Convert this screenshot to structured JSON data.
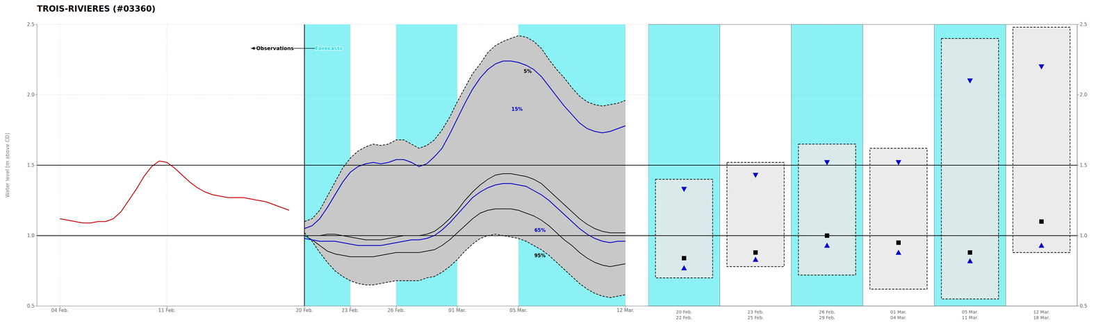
{
  "chart_data": [
    {
      "type": "line",
      "title": "TROIS-RIVIERES (#03360)",
      "y_label": "Water level [m above CD]",
      "xlim": [
        -17.5,
        22.5
      ],
      "xticks": [
        {
          "value": -16,
          "label": "04 Feb."
        },
        {
          "value": -9,
          "label": "11 Feb."
        },
        {
          "value": 0,
          "label": "20 Feb."
        },
        {
          "value": 3,
          "label": "23 Feb."
        },
        {
          "value": 6,
          "label": "26 Feb."
        },
        {
          "value": 10,
          "label": "01 Mar."
        },
        {
          "value": 14,
          "label": "05 Mar."
        },
        {
          "value": 21,
          "label": "12 Mar."
        }
      ],
      "ylim": [
        0.5,
        2.5
      ],
      "yticks": [
        0.5,
        {
          "value": 1.0,
          "label": "1.0"
        },
        1.5,
        {
          "value": 2.0,
          "label": "2.0"
        },
        2.5
      ],
      "grid": true,
      "shaded_x": {
        "color": "#00e0e8",
        "ranges": [
          [
            0,
            3
          ],
          [
            6,
            10
          ],
          [
            14,
            21
          ]
        ]
      },
      "fill_between": {
        "series": [
          "5%",
          "95%"
        ],
        "color": "#c8c8c8"
      },
      "reference_lines": {
        "x": [
          0
        ],
        "y": [
          1.0,
          1.5
        ]
      },
      "annotations": [
        {
          "text": "Observations",
          "x": -0.7,
          "y": 2.33,
          "color": "#000000"
        },
        {
          "text": "Forecasts",
          "x": 0.7,
          "y": 2.33,
          "color": "#00e0e8"
        }
      ],
      "arrow": {
        "x": [
          -3.5,
          2.5
        ],
        "y": 2.33
      },
      "series": [
        {
          "name": "5%",
          "color": "#000000",
          "line_style": "dashed",
          "label_x": 14.3,
          "label_y": 2.15,
          "x": [
            0,
            0.5,
            1,
            1.5,
            2,
            2.5,
            3,
            3.5,
            4,
            4.5,
            5,
            5.5,
            6,
            6.5,
            7,
            7.5,
            8,
            8.5,
            9,
            9.5,
            10,
            10.5,
            11,
            11.5,
            12,
            12.5,
            13,
            13.5,
            14,
            14.5,
            15,
            15.5,
            16,
            16.5,
            17,
            17.5,
            18,
            18.5,
            19,
            19.5,
            20,
            20.5,
            21
          ],
          "values": [
            1.1,
            1.12,
            1.18,
            1.28,
            1.38,
            1.48,
            1.55,
            1.6,
            1.63,
            1.65,
            1.64,
            1.65,
            1.68,
            1.68,
            1.65,
            1.62,
            1.64,
            1.68,
            1.75,
            1.84,
            1.95,
            2.05,
            2.15,
            2.22,
            2.3,
            2.35,
            2.38,
            2.4,
            2.42,
            2.41,
            2.38,
            2.33,
            2.25,
            2.18,
            2.12,
            2.05,
            1.99,
            1.95,
            1.93,
            1.92,
            1.93,
            1.94,
            1.96
          ]
        },
        {
          "name": "95%",
          "color": "#000000",
          "line_style": "dashed",
          "label_x": 15.0,
          "label_y": 0.84,
          "x": [
            0,
            0.5,
            1,
            1.5,
            2,
            2.5,
            3,
            3.5,
            4,
            4.5,
            5,
            5.5,
            6,
            6.5,
            7,
            7.5,
            8,
            8.5,
            9,
            9.5,
            10,
            10.5,
            11,
            11.5,
            12,
            12.5,
            13,
            13.5,
            14,
            14.5,
            15,
            15.5,
            16,
            16.5,
            17,
            17.5,
            18,
            18.5,
            19,
            19.5,
            20,
            20.5,
            21
          ],
          "values": [
            1.02,
            0.96,
            0.88,
            0.81,
            0.75,
            0.71,
            0.68,
            0.66,
            0.65,
            0.65,
            0.66,
            0.67,
            0.68,
            0.68,
            0.68,
            0.68,
            0.7,
            0.71,
            0.74,
            0.78,
            0.83,
            0.89,
            0.94,
            0.98,
            1.0,
            1.01,
            1.0,
            0.99,
            0.98,
            0.96,
            0.93,
            0.9,
            0.86,
            0.81,
            0.76,
            0.71,
            0.66,
            0.62,
            0.59,
            0.57,
            0.56,
            0.57,
            0.58
          ]
        },
        {
          "color": "#000000",
          "line_style": "solid",
          "x": [
            0,
            0.5,
            1,
            1.5,
            2,
            2.5,
            3,
            3.5,
            4,
            4.5,
            5,
            5.5,
            6,
            6.5,
            7,
            7.5,
            8,
            8.5,
            9,
            9.5,
            10,
            10.5,
            11,
            11.5,
            12,
            12.5,
            13,
            13.5,
            14,
            14.5,
            15,
            15.5,
            16,
            16.5,
            17,
            17.5,
            18,
            18.5,
            19,
            19.5,
            20,
            20.5,
            21
          ],
          "values": [
            1.0,
            1.0,
            1.0,
            1.01,
            1.01,
            1.0,
            0.99,
            0.98,
            0.97,
            0.97,
            0.97,
            0.98,
            0.99,
            1.0,
            1.0,
            1.0,
            1.01,
            1.03,
            1.07,
            1.12,
            1.18,
            1.25,
            1.31,
            1.36,
            1.4,
            1.43,
            1.44,
            1.44,
            1.43,
            1.42,
            1.4,
            1.37,
            1.32,
            1.27,
            1.22,
            1.17,
            1.12,
            1.08,
            1.05,
            1.03,
            1.02,
            1.02,
            1.02
          ]
        },
        {
          "color": "#000000",
          "line_style": "solid",
          "x": [
            0,
            0.5,
            1,
            1.5,
            2,
            2.5,
            3,
            3.5,
            4,
            4.5,
            5,
            5.5,
            6,
            6.5,
            7,
            7.5,
            8,
            8.5,
            9,
            9.5,
            10,
            10.5,
            11,
            11.5,
            12,
            12.5,
            13,
            13.5,
            14,
            14.5,
            15,
            15.5,
            16,
            16.5,
            17,
            17.5,
            18,
            18.5,
            19,
            19.5,
            20,
            20.5,
            21
          ],
          "values": [
            1.0,
            0.97,
            0.93,
            0.89,
            0.87,
            0.86,
            0.85,
            0.85,
            0.85,
            0.85,
            0.86,
            0.87,
            0.88,
            0.88,
            0.88,
            0.88,
            0.89,
            0.9,
            0.93,
            0.97,
            1.02,
            1.07,
            1.12,
            1.16,
            1.18,
            1.19,
            1.19,
            1.19,
            1.18,
            1.16,
            1.14,
            1.11,
            1.07,
            1.02,
            0.97,
            0.93,
            0.88,
            0.84,
            0.81,
            0.79,
            0.78,
            0.79,
            0.8
          ]
        },
        {
          "name": "15%",
          "color": "#0000cc",
          "line_style": "solid",
          "label_x": 13.5,
          "label_y": 1.88,
          "x": [
            0,
            0.5,
            1,
            1.5,
            2,
            2.5,
            3,
            3.5,
            4,
            4.5,
            5,
            5.5,
            6,
            6.5,
            7,
            7.5,
            8,
            8.5,
            9,
            9.5,
            10,
            10.5,
            11,
            11.5,
            12,
            12.5,
            13,
            13.5,
            14,
            14.5,
            15,
            15.5,
            16,
            16.5,
            17,
            17.5,
            18,
            18.5,
            19,
            19.5,
            20,
            20.5,
            21
          ],
          "values": [
            1.05,
            1.07,
            1.12,
            1.2,
            1.29,
            1.38,
            1.45,
            1.49,
            1.51,
            1.52,
            1.51,
            1.52,
            1.54,
            1.54,
            1.52,
            1.49,
            1.51,
            1.56,
            1.62,
            1.72,
            1.83,
            1.94,
            2.04,
            2.12,
            2.18,
            2.22,
            2.24,
            2.24,
            2.23,
            2.21,
            2.18,
            2.13,
            2.06,
            1.99,
            1.92,
            1.86,
            1.8,
            1.76,
            1.74,
            1.73,
            1.74,
            1.76,
            1.78
          ]
        },
        {
          "name": "65%",
          "color": "#0000cc",
          "line_style": "solid",
          "label_x": 15.0,
          "label_y": 1.02,
          "x": [
            0,
            0.5,
            1,
            1.5,
            2,
            2.5,
            3,
            3.5,
            4,
            4.5,
            5,
            5.5,
            6,
            6.5,
            7,
            7.5,
            8,
            8.5,
            9,
            9.5,
            10,
            10.5,
            11,
            11.5,
            12,
            12.5,
            13,
            13.5,
            14,
            14.5,
            15,
            15.5,
            16,
            16.5,
            17,
            17.5,
            18,
            18.5,
            19,
            19.5,
            20,
            20.5,
            21
          ],
          "values": [
            0.98,
            0.97,
            0.96,
            0.96,
            0.96,
            0.95,
            0.94,
            0.93,
            0.93,
            0.93,
            0.93,
            0.94,
            0.95,
            0.96,
            0.97,
            0.97,
            0.98,
            1.0,
            1.04,
            1.09,
            1.15,
            1.21,
            1.27,
            1.31,
            1.34,
            1.36,
            1.37,
            1.37,
            1.36,
            1.35,
            1.32,
            1.29,
            1.25,
            1.2,
            1.15,
            1.1,
            1.05,
            1.01,
            0.98,
            0.96,
            0.95,
            0.96,
            0.96
          ]
        },
        {
          "color": "#cc0000",
          "line_style": "solid",
          "x": [
            -16,
            -15.5,
            -15,
            -14.5,
            -14,
            -13.5,
            -13,
            -12.5,
            -12,
            -11.5,
            -11,
            -10.5,
            -10,
            -9.5,
            -9,
            -8.5,
            -8,
            -7.5,
            -7,
            -6.5,
            -6,
            -5.5,
            -5,
            -4.5,
            -4,
            -3.5,
            -3,
            -2.5,
            -2,
            -1.5,
            -1
          ],
          "values": [
            1.12,
            1.11,
            1.1,
            1.09,
            1.09,
            1.1,
            1.1,
            1.12,
            1.17,
            1.25,
            1.33,
            1.42,
            1.49,
            1.53,
            1.52,
            1.48,
            1.43,
            1.38,
            1.34,
            1.31,
            1.29,
            1.28,
            1.27,
            1.27,
            1.27,
            1.26,
            1.25,
            1.24,
            1.22,
            1.2,
            1.18
          ]
        }
      ]
    },
    {
      "type": "panels",
      "categories": [
        "20 Feb.\n22 Feb.",
        "23 Feb.\n25 Feb.",
        "26 Feb.\n29 Feb.",
        "01 Mar.\n04 Mar.",
        "05 Mar.\n11 Mar.",
        "12 Mar.\n18 Mar."
      ],
      "colors": [
        "#00e0e8",
        "#ffffff",
        "#00e0e8",
        "#ffffff",
        "#00e0e8",
        "#ffffff"
      ],
      "ylim": [
        0.5,
        2.5
      ],
      "yticks": [
        0.5,
        {
          "value": 1.0,
          "label": "1.0"
        },
        1.5,
        {
          "value": 2.0,
          "label": "2.0"
        },
        2.5
      ],
      "grid": true,
      "reference_lines": {
        "y": [
          1.0,
          1.5
        ]
      },
      "box_low": [
        0.7,
        0.78,
        0.72,
        0.62,
        0.55,
        0.88
      ],
      "box_high": [
        1.4,
        1.52,
        1.65,
        1.62,
        2.4,
        2.48
      ],
      "series": [
        {
          "marker": "triangle-down",
          "color": "#0000cc",
          "values": [
            1.33,
            1.43,
            1.52,
            1.52,
            2.1,
            2.2
          ]
        },
        {
          "marker": "square",
          "color": "#000000",
          "values": [
            0.84,
            0.88,
            1.0,
            0.95,
            0.88,
            1.1
          ]
        },
        {
          "marker": "triangle-up",
          "color": "#0000cc",
          "values": [
            0.77,
            0.83,
            0.93,
            0.88,
            0.82,
            0.93
          ]
        }
      ]
    }
  ]
}
